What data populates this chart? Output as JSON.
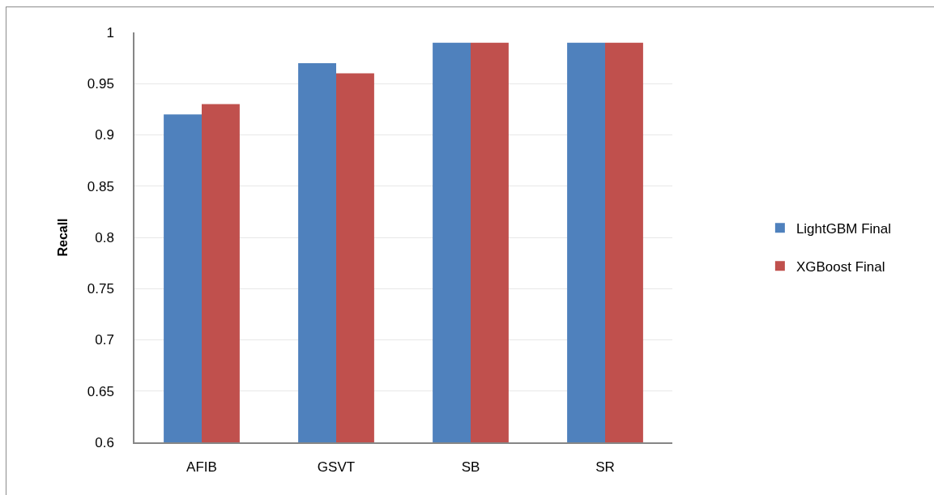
{
  "chart_data": {
    "type": "bar",
    "categories": [
      "AFIB",
      "GSVT",
      "SB",
      "SR"
    ],
    "series": [
      {
        "name": "LightGBM Final",
        "color": "#4f81bd",
        "values": [
          0.92,
          0.97,
          0.99,
          0.99
        ]
      },
      {
        "name": "XGBoost Final",
        "color": "#c0504d",
        "values": [
          0.93,
          0.96,
          0.99,
          0.99
        ]
      }
    ],
    "ylabel": "Recall",
    "ylim": [
      0.6,
      1
    ],
    "yticks": [
      0.6,
      0.65,
      0.7,
      0.75,
      0.8,
      0.85,
      0.9,
      0.95,
      1
    ],
    "grid": "y",
    "legend": "right"
  }
}
